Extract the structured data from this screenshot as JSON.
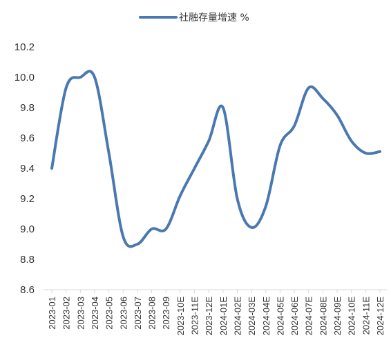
{
  "chart_data": {
    "type": "line",
    "title": "",
    "xlabel": "",
    "ylabel": "",
    "ylim": [
      8.6,
      10.2
    ],
    "yticks": [
      "8.6",
      "8.8",
      "9.0",
      "9.2",
      "9.4",
      "9.6",
      "9.8",
      "10.0",
      "10.2"
    ],
    "grid": false,
    "legend_position": "top-center",
    "categories": [
      "2023-01",
      "2023-02",
      "2023-03",
      "2023-04",
      "2023-05",
      "2023-06",
      "2023-07",
      "2023-08",
      "2023-09",
      "2023-10E",
      "2023-11E",
      "2023-12E",
      "2024-01E",
      "2024-02E",
      "2024-03E",
      "2024-04E",
      "2024-05E",
      "2024-06E",
      "2024-07E",
      "2024-08E",
      "2024-09E",
      "2024-10E",
      "2024-11E",
      "2024-12E"
    ],
    "series": [
      {
        "name": "社融存量增速 %",
        "color": "#4a78b2",
        "values": [
          9.4,
          9.93,
          10.0,
          10.0,
          9.5,
          8.95,
          8.9,
          9.0,
          9.0,
          9.22,
          9.4,
          9.58,
          9.8,
          9.2,
          9.01,
          9.15,
          9.55,
          9.68,
          9.93,
          9.86,
          9.75,
          9.58,
          9.5,
          9.51
        ]
      }
    ]
  }
}
